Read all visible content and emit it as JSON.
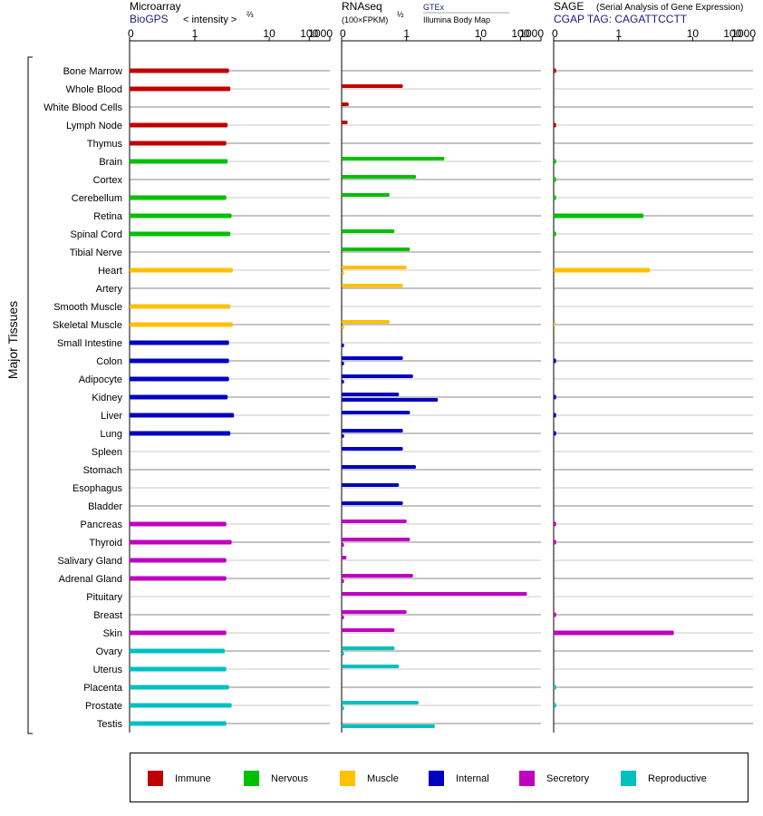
{
  "panels": {
    "microarray": {
      "title": "Microarray",
      "source": "BioGPS",
      "unit": "< intensity >",
      "unit_exp": "⅔"
    },
    "rnaseq": {
      "title": "RNAseq",
      "unit": "(100×FPKM)",
      "unit_exp": "½",
      "source_a": "GTEx",
      "source_b": "Illumina Body Map"
    },
    "sage": {
      "title": "SAGE",
      "subtitle": "(Serial Analysis of Gene Expression)",
      "source": "CGAP TAG: CAGATTCCTT"
    }
  },
  "group_label": "Major Tissues",
  "legend": [
    {
      "name": "Immune",
      "color": "#c00000"
    },
    {
      "name": "Nervous",
      "color": "#00c000"
    },
    {
      "name": "Muscle",
      "color": "#ffc000"
    },
    {
      "name": "Internal",
      "color": "#0000c0"
    },
    {
      "name": "Secretory",
      "color": "#c000c0"
    },
    {
      "name": "Reproductive",
      "color": "#00c0c0"
    }
  ],
  "chart_data": {
    "type": "bar",
    "orientation": "horizontal",
    "scale": "log-like (0, 1, 10, 100, 1000)",
    "ticks": [
      "0",
      "1",
      "10",
      "100",
      "1000"
    ],
    "ylabel": "Major Tissues",
    "categories": [
      "Bone Marrow",
      "Whole Blood",
      "White Blood Cells",
      "Lymph Node",
      "Thymus",
      "Brain",
      "Cortex",
      "Cerebellum",
      "Retina",
      "Spinal Cord",
      "Tibial Nerve",
      "Heart",
      "Artery",
      "Smooth Muscle",
      "Skeletal Muscle",
      "Small Intestine",
      "Colon",
      "Adipocyte",
      "Kidney",
      "Liver",
      "Lung",
      "Spleen",
      "Stomach",
      "Esophagus",
      "Bladder",
      "Pancreas",
      "Thyroid",
      "Salivary Gland",
      "Adrenal Gland",
      "Pituitary",
      "Breast",
      "Skin",
      "Ovary",
      "Uterus",
      "Placenta",
      "Prostate",
      "Testis"
    ],
    "system": [
      "Immune",
      "Immune",
      "Immune",
      "Immune",
      "Immune",
      "Nervous",
      "Nervous",
      "Nervous",
      "Nervous",
      "Nervous",
      "Nervous",
      "Muscle",
      "Muscle",
      "Muscle",
      "Muscle",
      "Internal",
      "Internal",
      "Internal",
      "Internal",
      "Internal",
      "Internal",
      "Internal",
      "Internal",
      "Internal",
      "Internal",
      "Secretory",
      "Secretory",
      "Secretory",
      "Secretory",
      "Secretory",
      "Secretory",
      "Secretory",
      "Reproductive",
      "Reproductive",
      "Reproductive",
      "Reproductive",
      "Reproductive"
    ],
    "series": [
      {
        "name": "Microarray",
        "values": [
          2.6,
          2.7,
          null,
          2.5,
          2.4,
          2.5,
          null,
          2.4,
          2.8,
          2.7,
          null,
          2.9,
          null,
          2.7,
          2.9,
          2.6,
          2.6,
          2.6,
          2.5,
          3.0,
          2.7,
          null,
          null,
          null,
          null,
          2.4,
          2.8,
          2.4,
          2.4,
          null,
          null,
          2.4,
          2.3,
          2.4,
          2.6,
          2.8,
          2.4
        ]
      },
      {
        "name": "GTEx",
        "values": [
          null,
          0.9,
          0.06,
          0.05,
          null,
          2.9,
          1.3,
          0.6,
          null,
          0.7,
          1.1,
          1.0,
          0.9,
          null,
          0.6,
          null,
          0.9,
          1.2,
          0.8,
          1.1,
          0.9,
          0.9,
          1.3,
          0.8,
          0.9,
          1.0,
          1.1,
          0.04,
          1.2,
          180,
          1.0,
          0.7,
          0.7,
          0.8,
          null,
          1.4,
          null
        ]
      },
      {
        "name": "Illumina Body Map",
        "values": [
          null,
          null,
          null,
          null,
          null,
          null,
          null,
          null,
          null,
          null,
          null,
          0.02,
          null,
          null,
          0.02,
          0.02,
          0.02,
          0.02,
          2.4,
          null,
          0.02,
          null,
          null,
          null,
          null,
          null,
          0.02,
          null,
          0.02,
          null,
          0.02,
          null,
          0.02,
          null,
          null,
          0.02,
          2.2
        ]
      },
      {
        "name": "SAGE",
        "values": [
          0.02,
          null,
          null,
          0.02,
          null,
          0.02,
          0.02,
          0.02,
          2.0,
          0.02,
          null,
          2.4,
          null,
          null,
          0.01,
          null,
          0.02,
          null,
          0.02,
          0.02,
          0.02,
          null,
          null,
          null,
          null,
          0.02,
          0.02,
          null,
          null,
          null,
          0.02,
          5.0,
          null,
          null,
          0.02,
          0.02,
          null
        ]
      }
    ]
  }
}
